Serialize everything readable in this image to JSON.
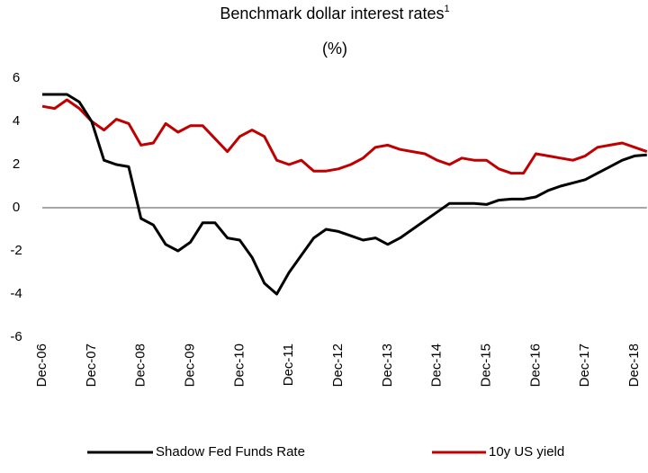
{
  "chart_data": {
    "type": "line",
    "title": "Benchmark dollar interest rates",
    "title_footnote": "1",
    "subtitle": "(%)",
    "categories": [
      "Dec-06",
      null,
      null,
      null,
      "Dec-07",
      null,
      null,
      null,
      "Dec-08",
      null,
      null,
      null,
      "Dec-09",
      null,
      null,
      null,
      "Dec-10",
      null,
      null,
      null,
      "Dec-11",
      null,
      null,
      null,
      "Dec-12",
      null,
      null,
      null,
      "Dec-13",
      null,
      null,
      null,
      "Dec-14",
      null,
      null,
      null,
      "Dec-15",
      null,
      null,
      null,
      "Dec-16",
      null,
      null,
      null,
      "Dec-17",
      null,
      null,
      null,
      "Dec-18",
      null
    ],
    "series": [
      {
        "name": "Shadow Fed Funds Rate",
        "color": "#000000",
        "values": [
          5.25,
          5.25,
          5.25,
          4.9,
          4.0,
          2.2,
          2.0,
          1.9,
          -0.5,
          -0.8,
          -1.7,
          -2.0,
          -1.6,
          -0.7,
          -0.7,
          -1.4,
          -1.5,
          -2.3,
          -3.5,
          -4.0,
          -3.0,
          -2.2,
          -1.4,
          -1.0,
          -1.1,
          -1.3,
          -1.5,
          -1.4,
          -1.7,
          -1.4,
          -1.0,
          -0.6,
          -0.2,
          0.2,
          0.2,
          0.2,
          0.15,
          0.35,
          0.4,
          0.4,
          0.5,
          0.8,
          1.0,
          1.15,
          1.3,
          1.6,
          1.9,
          2.2,
          2.4,
          2.45
        ]
      },
      {
        "name": "10y US yield",
        "color": "#c00000",
        "values": [
          4.7,
          4.6,
          5.0,
          4.6,
          4.0,
          3.6,
          4.1,
          3.9,
          2.9,
          3.0,
          3.9,
          3.5,
          3.8,
          3.8,
          3.2,
          2.6,
          3.3,
          3.6,
          3.3,
          2.2,
          2.0,
          2.2,
          1.7,
          1.7,
          1.8,
          2.0,
          2.3,
          2.8,
          2.9,
          2.7,
          2.6,
          2.5,
          2.2,
          2.0,
          2.3,
          2.2,
          2.2,
          1.8,
          1.6,
          1.6,
          2.5,
          2.4,
          2.3,
          2.2,
          2.4,
          2.8,
          2.9,
          3.0,
          2.8,
          2.6
        ]
      }
    ],
    "ylim": [
      -6,
      6
    ],
    "yticks": [
      6,
      4,
      2,
      0,
      -2,
      -4,
      -6
    ],
    "grid": false,
    "legend": "bottom"
  }
}
